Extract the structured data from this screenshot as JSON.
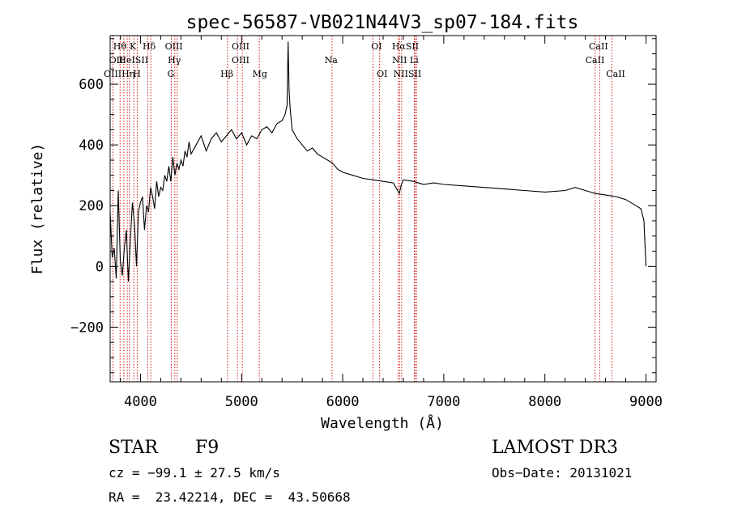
{
  "chart_data": {
    "type": "line",
    "title": "spec-56587-VB021N44V3_sp07-184.fits",
    "xlabel": "Wavelength (Å)",
    "ylabel": "Flux (relative)",
    "xlim": [
      3700,
      9100
    ],
    "ylim": [
      -380,
      760
    ],
    "xticks": [
      4000,
      5000,
      6000,
      7000,
      8000,
      9000
    ],
    "xtick_labels": [
      "4000",
      "5000",
      "6000",
      "7000",
      "8000",
      "9000"
    ],
    "yticks": [
      -200,
      0,
      200,
      400,
      600
    ],
    "ytick_labels": [
      "−200",
      "0",
      "200",
      "400",
      "600"
    ],
    "grid": false,
    "series": [
      {
        "name": "flux",
        "x": [
          3700,
          3720,
          3740,
          3760,
          3780,
          3800,
          3820,
          3840,
          3860,
          3880,
          3900,
          3920,
          3940,
          3960,
          3980,
          4000,
          4020,
          4040,
          4060,
          4080,
          4100,
          4120,
          4140,
          4160,
          4180,
          4200,
          4220,
          4240,
          4260,
          4280,
          4300,
          4320,
          4340,
          4360,
          4380,
          4400,
          4420,
          4440,
          4460,
          4480,
          4500,
          4550,
          4600,
          4650,
          4700,
          4750,
          4800,
          4850,
          4900,
          4950,
          5000,
          5050,
          5100,
          5150,
          5200,
          5250,
          5300,
          5350,
          5400,
          5430,
          5450,
          5460,
          5470,
          5480,
          5500,
          5550,
          5600,
          5650,
          5700,
          5750,
          5800,
          5850,
          5900,
          5950,
          6000,
          6100,
          6200,
          6300,
          6400,
          6500,
          6560,
          6580,
          6600,
          6700,
          6800,
          6900,
          7000,
          7200,
          7400,
          7600,
          7800,
          8000,
          8200,
          8300,
          8400,
          8500,
          8600,
          8700,
          8800,
          8900,
          8950,
          8980,
          9000
        ],
        "values": [
          180,
          30,
          60,
          -40,
          250,
          20,
          -30,
          60,
          120,
          -50,
          90,
          210,
          140,
          0,
          180,
          210,
          230,
          120,
          200,
          180,
          260,
          230,
          190,
          280,
          230,
          260,
          250,
          300,
          280,
          330,
          280,
          360,
          300,
          340,
          320,
          350,
          330,
          380,
          360,
          410,
          370,
          400,
          430,
          380,
          420,
          440,
          410,
          430,
          450,
          420,
          440,
          400,
          430,
          420,
          450,
          460,
          440,
          470,
          480,
          500,
          530,
          740,
          580,
          520,
          450,
          420,
          400,
          380,
          390,
          370,
          360,
          350,
          340,
          320,
          310,
          300,
          290,
          285,
          280,
          275,
          240,
          270,
          285,
          280,
          270,
          275,
          270,
          265,
          260,
          255,
          250,
          245,
          250,
          260,
          250,
          240,
          235,
          230,
          220,
          200,
          190,
          150,
          0
        ]
      }
    ],
    "lines": [
      {
        "name": "Hθ",
        "x": 3798
      },
      {
        "name": "OII",
        "x": 3727
      },
      {
        "name": "OIII",
        "x": 3869
      },
      {
        "name": "K",
        "x": 3934
      },
      {
        "name": "H",
        "x": 3969
      },
      {
        "name": "HeI",
        "x": 3889
      },
      {
        "name": "Hη",
        "x": 3835
      },
      {
        "name": "Hδ",
        "x": 4102
      },
      {
        "name": "SII",
        "x": 4072
      },
      {
        "name": "OIII",
        "x": 4363
      },
      {
        "name": "Hγ",
        "x": 4340
      },
      {
        "name": "G",
        "x": 4305
      },
      {
        "name": "Hβ",
        "x": 4861
      },
      {
        "name": "OIII",
        "x": 4959
      },
      {
        "name": "OIII",
        "x": 5007
      },
      {
        "name": "Mg",
        "x": 5175
      },
      {
        "name": "Na",
        "x": 5894
      },
      {
        "name": "OI",
        "x": 6300
      },
      {
        "name": "OI",
        "x": 6363
      },
      {
        "name": "Hα",
        "x": 6563
      },
      {
        "name": "NII",
        "x": 6548
      },
      {
        "name": "NII",
        "x": 6583
      },
      {
        "name": "SII",
        "x": 6716
      },
      {
        "name": "SII",
        "x": 6731
      },
      {
        "name": "Li",
        "x": 6708
      },
      {
        "name": "CaII",
        "x": 8498
      },
      {
        "name": "CaII",
        "x": 8542
      },
      {
        "name": "CaII",
        "x": 8662
      }
    ],
    "annotations": [
      {
        "text": "Hθ",
        "x": 3795,
        "row": 1
      },
      {
        "text": "K",
        "x": 3925,
        "row": 1
      },
      {
        "text": "Hδ",
        "x": 4085,
        "row": 1
      },
      {
        "text": "OIII",
        "x": 4330,
        "row": 1
      },
      {
        "text": "OIII",
        "x": 4990,
        "row": 1
      },
      {
        "text": "OI",
        "x": 6335,
        "row": 1
      },
      {
        "text": "HαSII",
        "x": 6620,
        "row": 1
      },
      {
        "text": "CaII",
        "x": 8530,
        "row": 1
      },
      {
        "text": "OII",
        "x": 3760,
        "row": 2
      },
      {
        "text": "HeISII",
        "x": 3930,
        "row": 2
      },
      {
        "text": "Hγ",
        "x": 4335,
        "row": 2
      },
      {
        "text": "OIII",
        "x": 4990,
        "row": 2
      },
      {
        "text": "Na",
        "x": 5885,
        "row": 2
      },
      {
        "text": "NII Li",
        "x": 6620,
        "row": 2
      },
      {
        "text": "CaII",
        "x": 8495,
        "row": 2
      },
      {
        "text": "OIIIHη",
        "x": 3790,
        "row": 3
      },
      {
        "text": "H",
        "x": 3965,
        "row": 3
      },
      {
        "text": "G",
        "x": 4300,
        "row": 3
      },
      {
        "text": "Hβ",
        "x": 4855,
        "row": 3
      },
      {
        "text": "Mg",
        "x": 5180,
        "row": 3
      },
      {
        "text": "OI",
        "x": 6390,
        "row": 3
      },
      {
        "text": "NIISII",
        "x": 6640,
        "row": 3
      },
      {
        "text": "CaII",
        "x": 8700,
        "row": 3
      }
    ]
  },
  "info": {
    "class": "STAR",
    "subclass": "F9",
    "survey": "LAMOST DR3",
    "cz": "cz = −99.1 ± 27.5 km/s",
    "obs_date": "Obs−Date: 20131021",
    "radec": "RA =  23.42214, DEC =  43.50668"
  }
}
